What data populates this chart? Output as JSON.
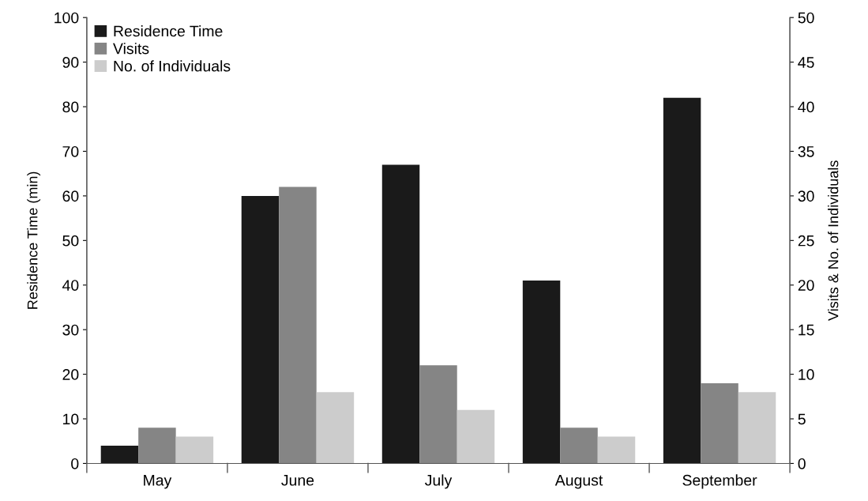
{
  "chart_data": {
    "type": "bar",
    "categories": [
      "May",
      "June",
      "July",
      "August",
      "September"
    ],
    "series": [
      {
        "name": "Residence Time",
        "color": "#1a1a1a",
        "values": [
          4,
          60,
          67,
          41,
          82
        ]
      },
      {
        "name": "Visits",
        "color": "#858585",
        "values": [
          4,
          31,
          11,
          4,
          9
        ],
        "axis": "y2"
      },
      {
        "name": "No. of Individuals",
        "color": "#cccccc",
        "values": [
          3,
          8,
          6,
          3,
          8
        ],
        "axis": "y2"
      }
    ],
    "ylabel": "Residence Time (min)",
    "y2label": "Visits & No. of Individuals",
    "ylim": [
      0,
      100
    ],
    "yticks": [
      0,
      10,
      20,
      30,
      40,
      50,
      60,
      70,
      80,
      90,
      100
    ],
    "y2lim": [
      0,
      50
    ],
    "y2ticks": [
      0,
      5,
      10,
      15,
      20,
      25,
      30,
      35,
      40,
      45,
      50
    ],
    "legend": "top left",
    "grid": false
  }
}
